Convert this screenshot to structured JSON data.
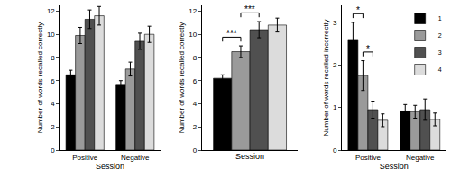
{
  "chart_data": [
    {
      "type": "bar",
      "categories": [
        "Positive",
        "Negative"
      ],
      "x_label": "Session",
      "y_label": "Number of words recalled correctly",
      "ylim": [
        0,
        12.5
      ],
      "yticks": [
        0,
        2,
        4,
        6,
        8,
        10,
        12
      ],
      "series": [
        {
          "name": "1",
          "color": "#000000",
          "values": [
            6.5,
            5.6
          ],
          "errors": [
            0.4,
            0.4
          ]
        },
        {
          "name": "2",
          "color": "#9a9a9a",
          "values": [
            9.9,
            7.0
          ],
          "errors": [
            0.7,
            0.6
          ]
        },
        {
          "name": "3",
          "color": "#505050",
          "values": [
            11.3,
            9.4
          ],
          "errors": [
            0.8,
            0.7
          ]
        },
        {
          "name": "4",
          "color": "#dcdcdc",
          "values": [
            11.6,
            10.0
          ],
          "errors": [
            0.8,
            0.7
          ]
        }
      ]
    },
    {
      "type": "bar",
      "categories": [
        null
      ],
      "x_label": "Session",
      "y_label": "Number of words recalled correctly",
      "ylim": [
        0,
        12.5
      ],
      "yticks": [
        0,
        2,
        4,
        6,
        8,
        10,
        12
      ],
      "series": [
        {
          "name": "1",
          "color": "#000000",
          "values": [
            6.2
          ],
          "errors": [
            0.3
          ]
        },
        {
          "name": "2",
          "color": "#9a9a9a",
          "values": [
            8.5
          ],
          "errors": [
            0.5
          ]
        },
        {
          "name": "3",
          "color": "#505050",
          "values": [
            10.4
          ],
          "errors": [
            0.7
          ]
        },
        {
          "name": "4",
          "color": "#dcdcdc",
          "values": [
            10.8
          ],
          "errors": [
            0.6
          ]
        }
      ],
      "annotations": [
        {
          "text": "***",
          "category": 0,
          "from": 0,
          "to": 1
        },
        {
          "text": "***",
          "category": 0,
          "from": 1,
          "to": 2
        }
      ]
    },
    {
      "type": "bar",
      "categories": [
        "Positive",
        "Negative"
      ],
      "x_label": "Session",
      "y_label": "Number of words recalled incorrectly",
      "ylim": [
        0,
        3.4
      ],
      "yticks": [
        0,
        1,
        2,
        3
      ],
      "legend": "top right",
      "series": [
        {
          "name": "1",
          "color": "#000000",
          "values": [
            2.6,
            0.92
          ],
          "errors": [
            0.4,
            0.15
          ]
        },
        {
          "name": "2",
          "color": "#9a9a9a",
          "values": [
            1.75,
            0.9
          ],
          "errors": [
            0.35,
            0.15
          ]
        },
        {
          "name": "3",
          "color": "#505050",
          "values": [
            0.95,
            0.95
          ],
          "errors": [
            0.2,
            0.25
          ]
        },
        {
          "name": "4",
          "color": "#dcdcdc",
          "values": [
            0.7,
            0.72
          ],
          "errors": [
            0.15,
            0.15
          ]
        }
      ],
      "annotations": [
        {
          "text": "*",
          "category": 0,
          "from": 0,
          "to": 1
        },
        {
          "text": "*",
          "category": 0,
          "from": 1,
          "to": 2
        }
      ]
    }
  ]
}
